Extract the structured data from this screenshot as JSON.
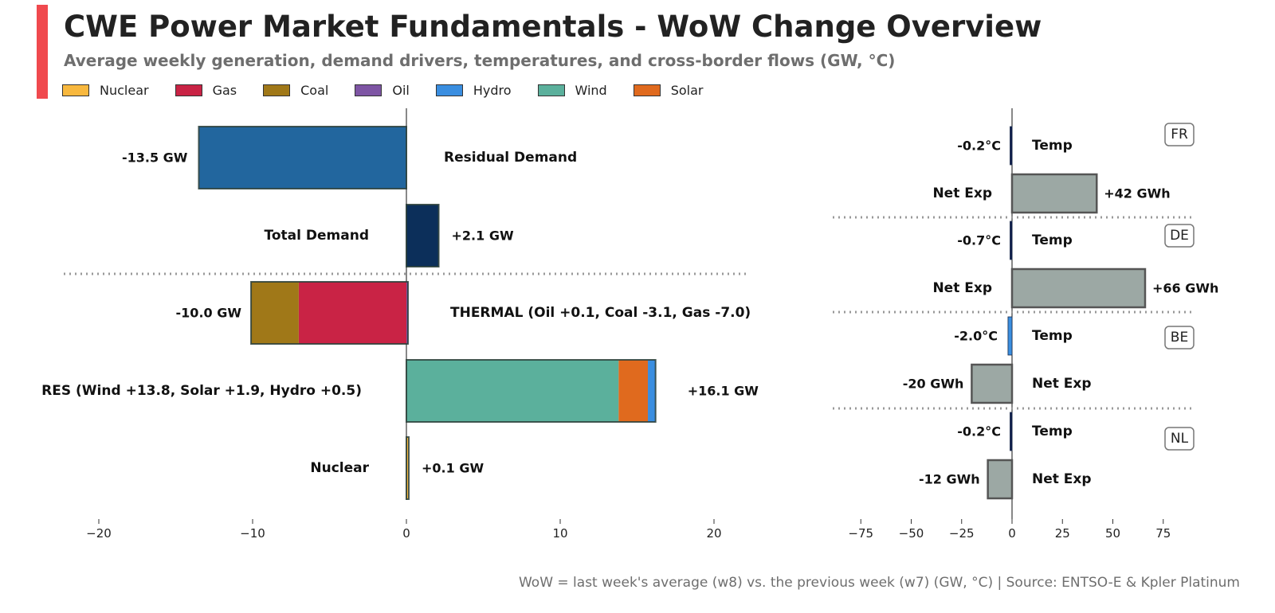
{
  "header": {
    "title": "CWE Power Market Fundamentals - WoW Change Overview",
    "subtitle": "Average weekly generation, demand drivers, temperatures, and cross-border flows (GW, °C)"
  },
  "legend": [
    {
      "label": "Nuclear",
      "color": "#f8b83e"
    },
    {
      "label": "Gas",
      "color": "#c92345"
    },
    {
      "label": "Coal",
      "color": "#a07818"
    },
    {
      "label": "Oil",
      "color": "#7e55a4"
    },
    {
      "label": "Hydro",
      "color": "#3a8ee0"
    },
    {
      "label": "Wind",
      "color": "#5bb09c"
    },
    {
      "label": "Solar",
      "color": "#e06a1e"
    }
  ],
  "footer": "WoW = last week's average (w8) vs. the previous week (w7) (GW, °C) | Source: ENTSO-E & Kpler Platinum",
  "chart_data": [
    {
      "type": "bar",
      "orientation": "horizontal",
      "stacked": true,
      "xlim": [
        -23,
        23
      ],
      "xticks": [
        -20,
        -10,
        0,
        10,
        20
      ],
      "tick_labels": [
        "−20",
        "−10",
        "0",
        "10",
        "20"
      ],
      "bars": [
        {
          "name": "Residual Demand",
          "category_label": "Residual Demand",
          "value_label": "-13.5 GW",
          "total": -13.5,
          "segments": [
            {
              "name": "Residual Demand",
              "value": -13.5,
              "color": "#22669e"
            }
          ]
        },
        {
          "name": "Total Demand",
          "category_label": "Total Demand",
          "value_label": "+2.1 GW",
          "total": 2.1,
          "segments": [
            {
              "name": "Total Demand",
              "value": 2.1,
              "color": "#0c2f5a"
            }
          ]
        },
        {
          "name": "Thermal",
          "category_label": "THERMAL (Oil +0.1, Coal -3.1, Gas -7.0)",
          "value_label": "-10.0 GW",
          "total": -10.0,
          "segments": [
            {
              "name": "Oil",
              "value": 0.1,
              "color": "#7e55a4"
            },
            {
              "name": "Gas",
              "value": -7.0,
              "color": "#c92345"
            },
            {
              "name": "Coal",
              "value": -3.1,
              "color": "#a07818"
            }
          ]
        },
        {
          "name": "RES",
          "category_label": "RES (Wind +13.8, Solar +1.9, Hydro +0.5)",
          "value_label": "+16.1 GW",
          "total": 16.1,
          "segments": [
            {
              "name": "Wind",
              "value": 13.8,
              "color": "#5bb09c"
            },
            {
              "name": "Solar",
              "value": 1.9,
              "color": "#e06a1e"
            },
            {
              "name": "Hydro",
              "value": 0.5,
              "color": "#3a8ee0"
            }
          ]
        },
        {
          "name": "Nuclear",
          "category_label": "Nuclear",
          "value_label": "+0.1 GW",
          "total": 0.1,
          "segments": [
            {
              "name": "Nuclear",
              "value": 0.1,
              "color": "#f8b83e"
            }
          ]
        }
      ]
    },
    {
      "type": "bar",
      "orientation": "horizontal",
      "xlim": [
        -89,
        89
      ],
      "xticks": [
        -75,
        -50,
        -25,
        0,
        25,
        50,
        75
      ],
      "tick_labels": [
        "−75",
        "−50",
        "−25",
        "0",
        "25",
        "50",
        "75"
      ],
      "countries": [
        {
          "code": "FR",
          "rows": [
            {
              "label": "Temp",
              "value": -0.2,
              "value_label": "-0.2°C",
              "kind": "temp"
            },
            {
              "label": "Net Exp",
              "value": 42,
              "value_label": "+42 GWh",
              "kind": "flow"
            }
          ]
        },
        {
          "code": "DE",
          "rows": [
            {
              "label": "Temp",
              "value": -0.7,
              "value_label": "-0.7°C",
              "kind": "temp"
            },
            {
              "label": "Net Exp",
              "value": 66,
              "value_label": "+66 GWh",
              "kind": "flow"
            }
          ]
        },
        {
          "code": "BE",
          "rows": [
            {
              "label": "Temp",
              "value": -2.0,
              "value_label": "-2.0°C",
              "kind": "temp"
            },
            {
              "label": "Net Exp",
              "value": -20,
              "value_label": "-20 GWh",
              "kind": "flow"
            }
          ]
        },
        {
          "code": "NL",
          "rows": [
            {
              "label": "Temp",
              "value": -0.2,
              "value_label": "-0.2°C",
              "kind": "temp"
            },
            {
              "label": "Net Exp",
              "value": -12,
              "value_label": "-12 GWh",
              "kind": "flow"
            }
          ]
        }
      ],
      "temp_color_small": "#0c1a4a",
      "temp_color_large": "#3a8ee0",
      "flow_color": "#9ca8a4"
    }
  ]
}
